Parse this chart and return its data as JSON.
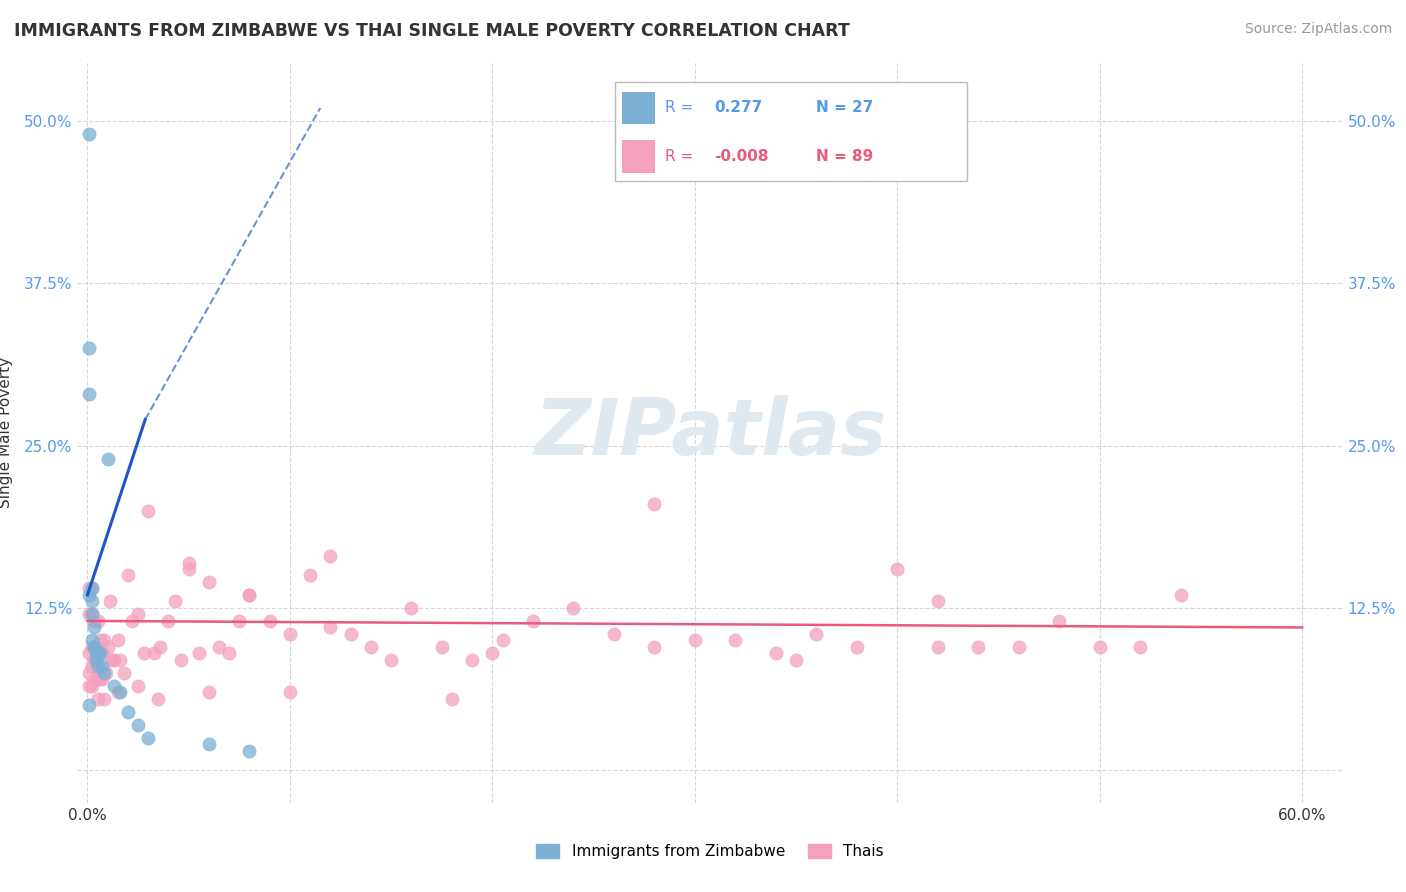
{
  "title": "IMMIGRANTS FROM ZIMBABWE VS THAI SINGLE MALE POVERTY CORRELATION CHART",
  "source": "Source: ZipAtlas.com",
  "ylabel": "Single Male Poverty",
  "r_zimbabwe": 0.277,
  "n_zimbabwe": 27,
  "r_thai": -0.008,
  "n_thai": 89,
  "xlim": [
    -0.005,
    0.62
  ],
  "ylim": [
    -0.025,
    0.545
  ],
  "xticks": [
    0.0,
    0.1,
    0.2,
    0.3,
    0.4,
    0.5,
    0.6
  ],
  "xticklabels": [
    "0.0%",
    "",
    "",
    "",
    "",
    "",
    "60.0%"
  ],
  "yticks": [
    0.0,
    0.125,
    0.25,
    0.375,
    0.5
  ],
  "yticklabels": [
    "",
    "12.5%",
    "25.0%",
    "37.5%",
    "50.0%"
  ],
  "color_zimbabwe": "#7bafd4",
  "color_thai": "#f4a0be",
  "trendline_zimbabwe_color": "#1a56cc",
  "trendline_thai_color": "#e85b7a",
  "background_color": "#ffffff",
  "watermark": "ZIPatlas",
  "legend_labels": [
    "Immigrants from Zimbabwe",
    "Thais"
  ],
  "zim_x": [
    0.001,
    0.001,
    0.001,
    0.001,
    0.001,
    0.002,
    0.002,
    0.002,
    0.002,
    0.003,
    0.003,
    0.003,
    0.004,
    0.004,
    0.005,
    0.005,
    0.006,
    0.007,
    0.008,
    0.01,
    0.013,
    0.016,
    0.02,
    0.025,
    0.03,
    0.06,
    0.08
  ],
  "zim_y": [
    0.49,
    0.325,
    0.29,
    0.135,
    0.05,
    0.14,
    0.13,
    0.12,
    0.1,
    0.11,
    0.095,
    0.095,
    0.09,
    0.085,
    0.09,
    0.08,
    0.09,
    0.08,
    0.075,
    0.24,
    0.065,
    0.06,
    0.045,
    0.035,
    0.025,
    0.02,
    0.015
  ],
  "thai_x": [
    0.001,
    0.001,
    0.001,
    0.001,
    0.001,
    0.002,
    0.002,
    0.002,
    0.002,
    0.002,
    0.003,
    0.003,
    0.004,
    0.004,
    0.005,
    0.005,
    0.006,
    0.006,
    0.007,
    0.007,
    0.008,
    0.009,
    0.01,
    0.011,
    0.012,
    0.013,
    0.015,
    0.016,
    0.018,
    0.02,
    0.022,
    0.025,
    0.028,
    0.03,
    0.033,
    0.036,
    0.04,
    0.043,
    0.046,
    0.05,
    0.055,
    0.06,
    0.065,
    0.07,
    0.075,
    0.08,
    0.09,
    0.1,
    0.11,
    0.12,
    0.13,
    0.14,
    0.15,
    0.16,
    0.175,
    0.19,
    0.205,
    0.22,
    0.24,
    0.26,
    0.28,
    0.3,
    0.32,
    0.34,
    0.36,
    0.38,
    0.4,
    0.42,
    0.44,
    0.46,
    0.48,
    0.5,
    0.52,
    0.54,
    0.28,
    0.05,
    0.08,
    0.12,
    0.2,
    0.35,
    0.42,
    0.005,
    0.008,
    0.015,
    0.025,
    0.035,
    0.06,
    0.1,
    0.18
  ],
  "thai_y": [
    0.14,
    0.12,
    0.09,
    0.075,
    0.065,
    0.14,
    0.12,
    0.095,
    0.08,
    0.065,
    0.115,
    0.085,
    0.095,
    0.07,
    0.115,
    0.08,
    0.1,
    0.07,
    0.09,
    0.07,
    0.1,
    0.075,
    0.095,
    0.13,
    0.085,
    0.085,
    0.1,
    0.085,
    0.075,
    0.15,
    0.115,
    0.12,
    0.09,
    0.2,
    0.09,
    0.095,
    0.115,
    0.13,
    0.085,
    0.155,
    0.09,
    0.145,
    0.095,
    0.09,
    0.115,
    0.135,
    0.115,
    0.105,
    0.15,
    0.11,
    0.105,
    0.095,
    0.085,
    0.125,
    0.095,
    0.085,
    0.1,
    0.115,
    0.125,
    0.105,
    0.095,
    0.1,
    0.1,
    0.09,
    0.105,
    0.095,
    0.155,
    0.095,
    0.095,
    0.095,
    0.115,
    0.095,
    0.095,
    0.135,
    0.205,
    0.16,
    0.135,
    0.165,
    0.09,
    0.085,
    0.13,
    0.055,
    0.055,
    0.06,
    0.065,
    0.055,
    0.06,
    0.06,
    0.055
  ],
  "zim_trendline_x": [
    0.0,
    0.0285
  ],
  "zim_trendline_y": [
    0.135,
    0.27
  ],
  "zim_dashline_x": [
    0.0285,
    0.115
  ],
  "zim_dashline_y": [
    0.27,
    0.51
  ],
  "thai_trendline_x": [
    0.0,
    0.6
  ],
  "thai_trendline_y": [
    0.115,
    0.11
  ]
}
